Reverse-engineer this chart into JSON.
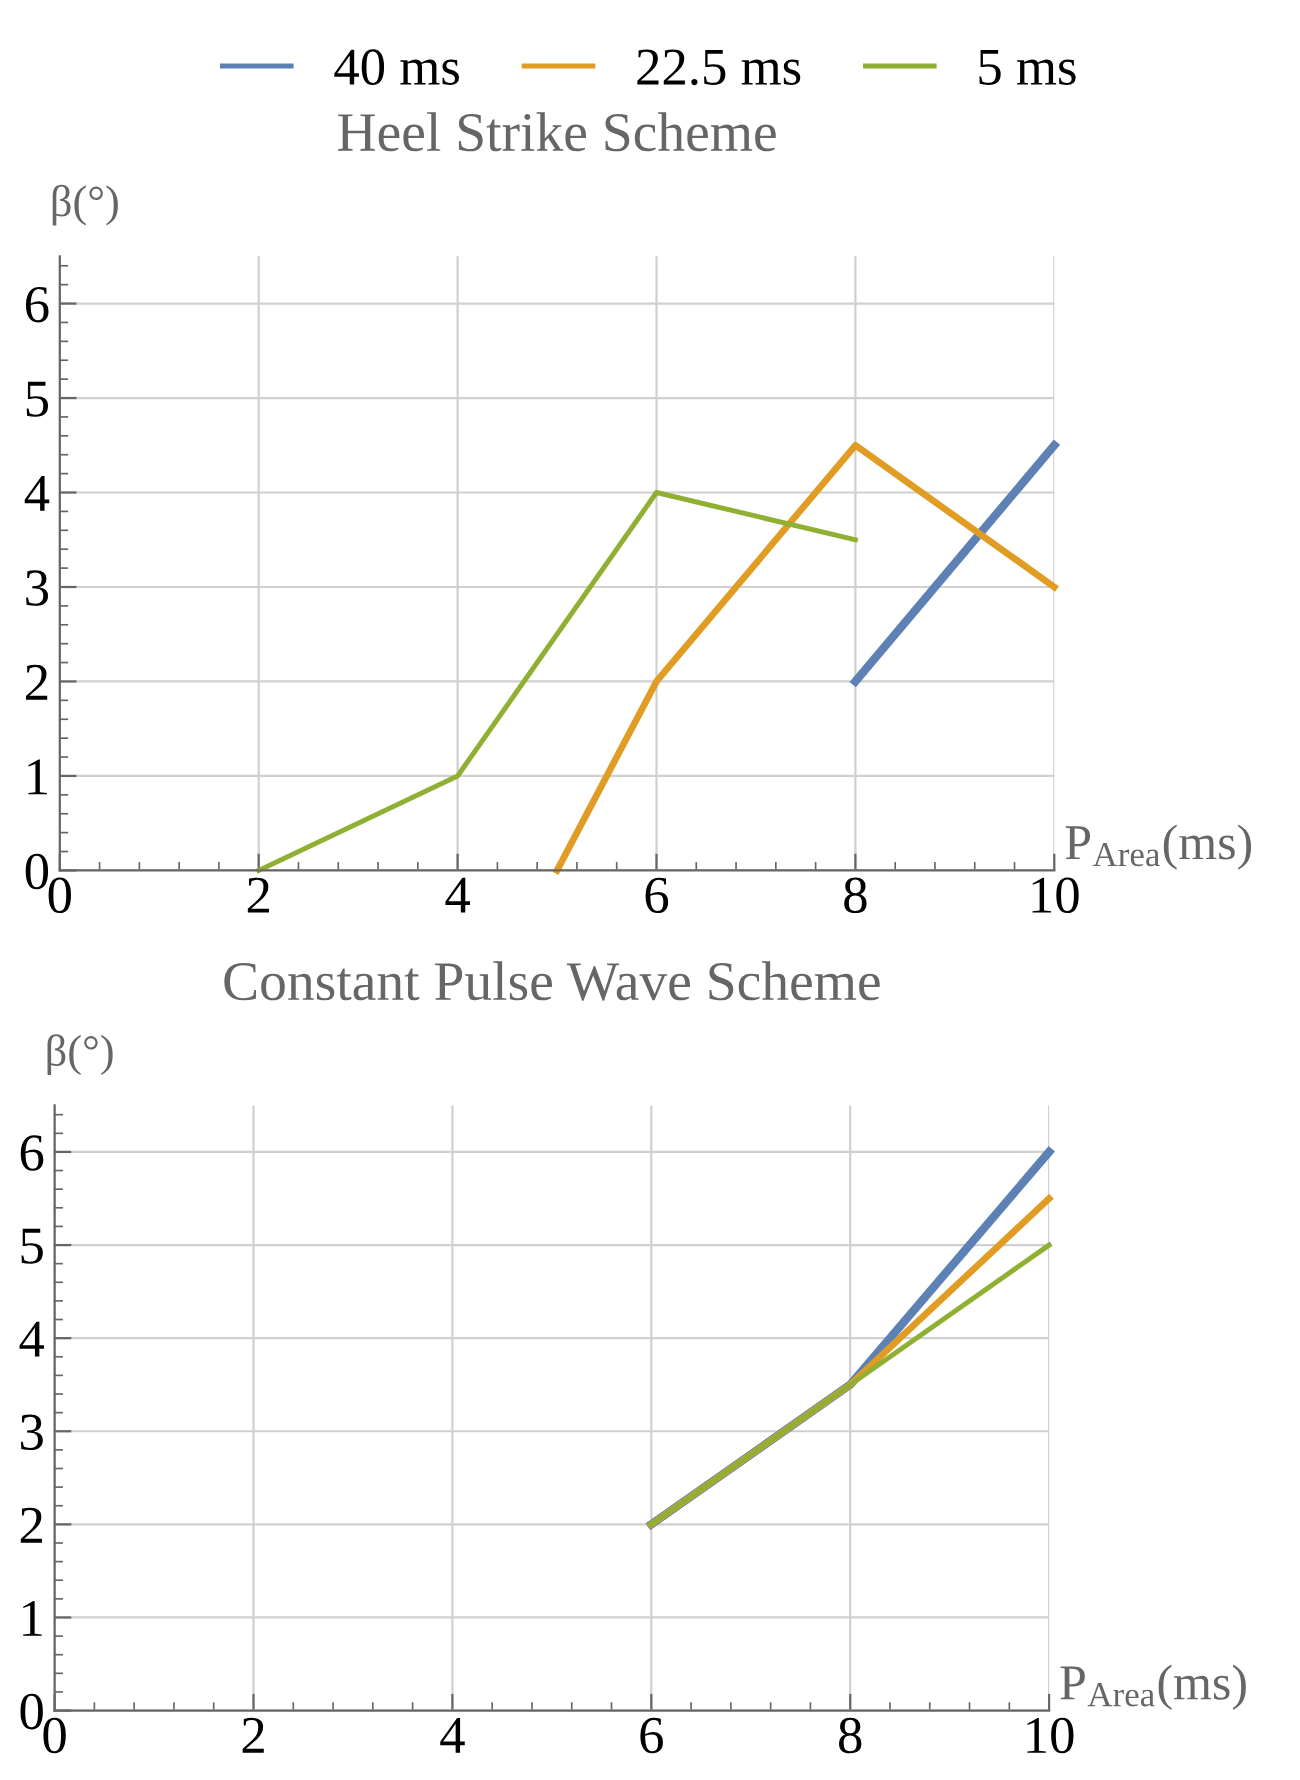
{
  "chart_data": [
    {
      "type": "line",
      "title": "Heel Strike Scheme",
      "xlabel": "P$_{Area}$(ms)",
      "ylabel": "β(°)",
      "xlim": [
        0,
        10
      ],
      "xticks": [
        0,
        2,
        4,
        6,
        8,
        10
      ],
      "ylim": [
        0,
        6.5
      ],
      "yticks": [
        0,
        1,
        2,
        3,
        4,
        5,
        6
      ],
      "grid": true,
      "legend": "top",
      "series": [
        {
          "name": "40 ms",
          "color": "#5e81b5",
          "x": [
            8,
            10
          ],
          "values": [
            2,
            4.5
          ]
        },
        {
          "name": "22.5 ms",
          "color": "#e19c24",
          "x": [
            5,
            6,
            8,
            10
          ],
          "values": [
            0,
            2,
            4.5,
            3
          ]
        },
        {
          "name": "5 ms",
          "color": "#8fb032",
          "x": [
            2,
            4,
            6,
            8
          ],
          "values": [
            0,
            1,
            4,
            3.5
          ]
        }
      ]
    },
    {
      "type": "line",
      "title": "Constant Pulse Wave Scheme",
      "xlabel": "P$_{Area}$(ms)",
      "ylabel": "β(°)",
      "xlim": [
        0,
        10
      ],
      "xticks": [
        0,
        2,
        4,
        6,
        8,
        10
      ],
      "ylim": [
        0,
        6.5
      ],
      "yticks": [
        0,
        1,
        2,
        3,
        4,
        5,
        6
      ],
      "grid": true,
      "series": [
        {
          "color": "#5e81b5",
          "x": [
            6,
            8,
            10
          ],
          "values": [
            2,
            3.5,
            6
          ]
        },
        {
          "color": "#e19c24",
          "x": [
            6,
            8,
            10
          ],
          "values": [
            2,
            3.5,
            5.5
          ]
        },
        {
          "color": "#8fb032",
          "x": [
            6,
            8,
            10
          ],
          "values": [
            2,
            3.5,
            5
          ]
        }
      ]
    }
  ]
}
